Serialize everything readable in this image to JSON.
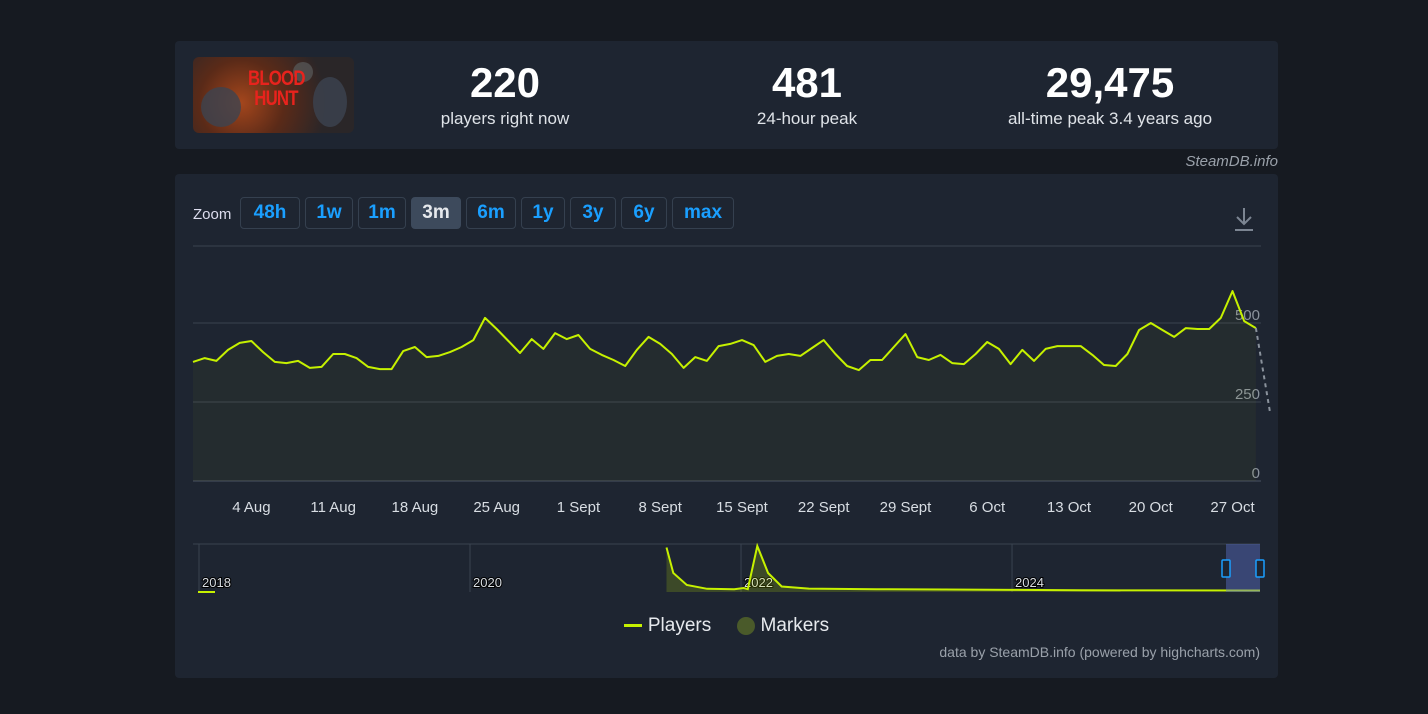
{
  "game": {
    "title": "BLOOD HUNT"
  },
  "stats": [
    {
      "value": "220",
      "label": "players right now"
    },
    {
      "value": "481",
      "label": "24-hour peak"
    },
    {
      "value": "29,475",
      "label": "all-time peak 3.4 years ago"
    }
  ],
  "credit": "SteamDB.info",
  "zoom": {
    "label": "Zoom",
    "buttons": [
      "48h",
      "1w",
      "1m",
      "3m",
      "6m",
      "1y",
      "3y",
      "6y",
      "max"
    ],
    "active": "3m"
  },
  "colors": {
    "line": "#c6f100",
    "marker": "#4a5a2a",
    "accent": "#1a9fff"
  },
  "chart_data": {
    "type": "line",
    "title": "",
    "start_date": "30 Jul",
    "x_unit": "day",
    "xticks": [
      {
        "label": "4 Aug",
        "day": 5
      },
      {
        "label": "11 Aug",
        "day": 12
      },
      {
        "label": "18 Aug",
        "day": 19
      },
      {
        "label": "25 Aug",
        "day": 26
      },
      {
        "label": "1 Sept",
        "day": 33
      },
      {
        "label": "8 Sept",
        "day": 40
      },
      {
        "label": "15 Sept",
        "day": 47
      },
      {
        "label": "22 Sept",
        "day": 54
      },
      {
        "label": "29 Sept",
        "day": 61
      },
      {
        "label": "6 Oct",
        "day": 68
      },
      {
        "label": "13 Oct",
        "day": 75
      },
      {
        "label": "20 Oct",
        "day": 82
      },
      {
        "label": "27 Oct",
        "day": 89
      }
    ],
    "yticks": [
      "0",
      "250",
      "500"
    ],
    "ylim": [
      0,
      750
    ],
    "grid": true,
    "series": [
      {
        "name": "Players",
        "values": [
          377,
          389,
          380,
          415,
          437,
          443,
          408,
          377,
          373,
          380,
          358,
          361,
          402,
          402,
          389,
          361,
          354,
          354,
          411,
          424,
          392,
          396,
          408,
          424,
          446,
          516,
          481,
          443,
          405,
          449,
          418,
          468,
          449,
          462,
          418,
          399,
          383,
          364,
          415,
          456,
          434,
          402,
          358,
          392,
          380,
          427,
          434,
          446,
          430,
          377,
          396,
          402,
          396,
          421,
          446,
          402,
          364,
          351,
          383,
          383,
          424,
          465,
          392,
          383,
          399,
          373,
          370,
          402,
          440,
          418,
          370,
          415,
          380,
          418,
          427,
          427,
          427,
          399,
          367,
          364,
          402,
          478,
          500,
          478,
          456,
          484,
          481,
          481,
          516,
          601,
          506,
          484
        ],
        "current": 220
      }
    ],
    "legend": [
      "Players",
      "Markers"
    ],
    "legend_position": "bottom",
    "navigator": {
      "labels": [
        "2018",
        "2020",
        "2022",
        "2024"
      ],
      "series": [
        [
          2021.45,
          29000
        ],
        [
          2021.5,
          12000
        ],
        [
          2021.6,
          4000
        ],
        [
          2021.75,
          1500
        ],
        [
          2021.95,
          1200
        ],
        [
          2022.02,
          2000
        ],
        [
          2022.05,
          1300
        ],
        [
          2022.12,
          30000
        ],
        [
          2022.2,
          12000
        ],
        [
          2022.3,
          3000
        ],
        [
          2022.5,
          1600
        ],
        [
          2023,
          1200
        ],
        [
          2023.5,
          1000
        ],
        [
          2024,
          700
        ],
        [
          2024.5,
          500
        ],
        [
          2024.8,
          420
        ]
      ]
    }
  },
  "footer": "data by SteamDB.info (powered by highcharts.com)"
}
